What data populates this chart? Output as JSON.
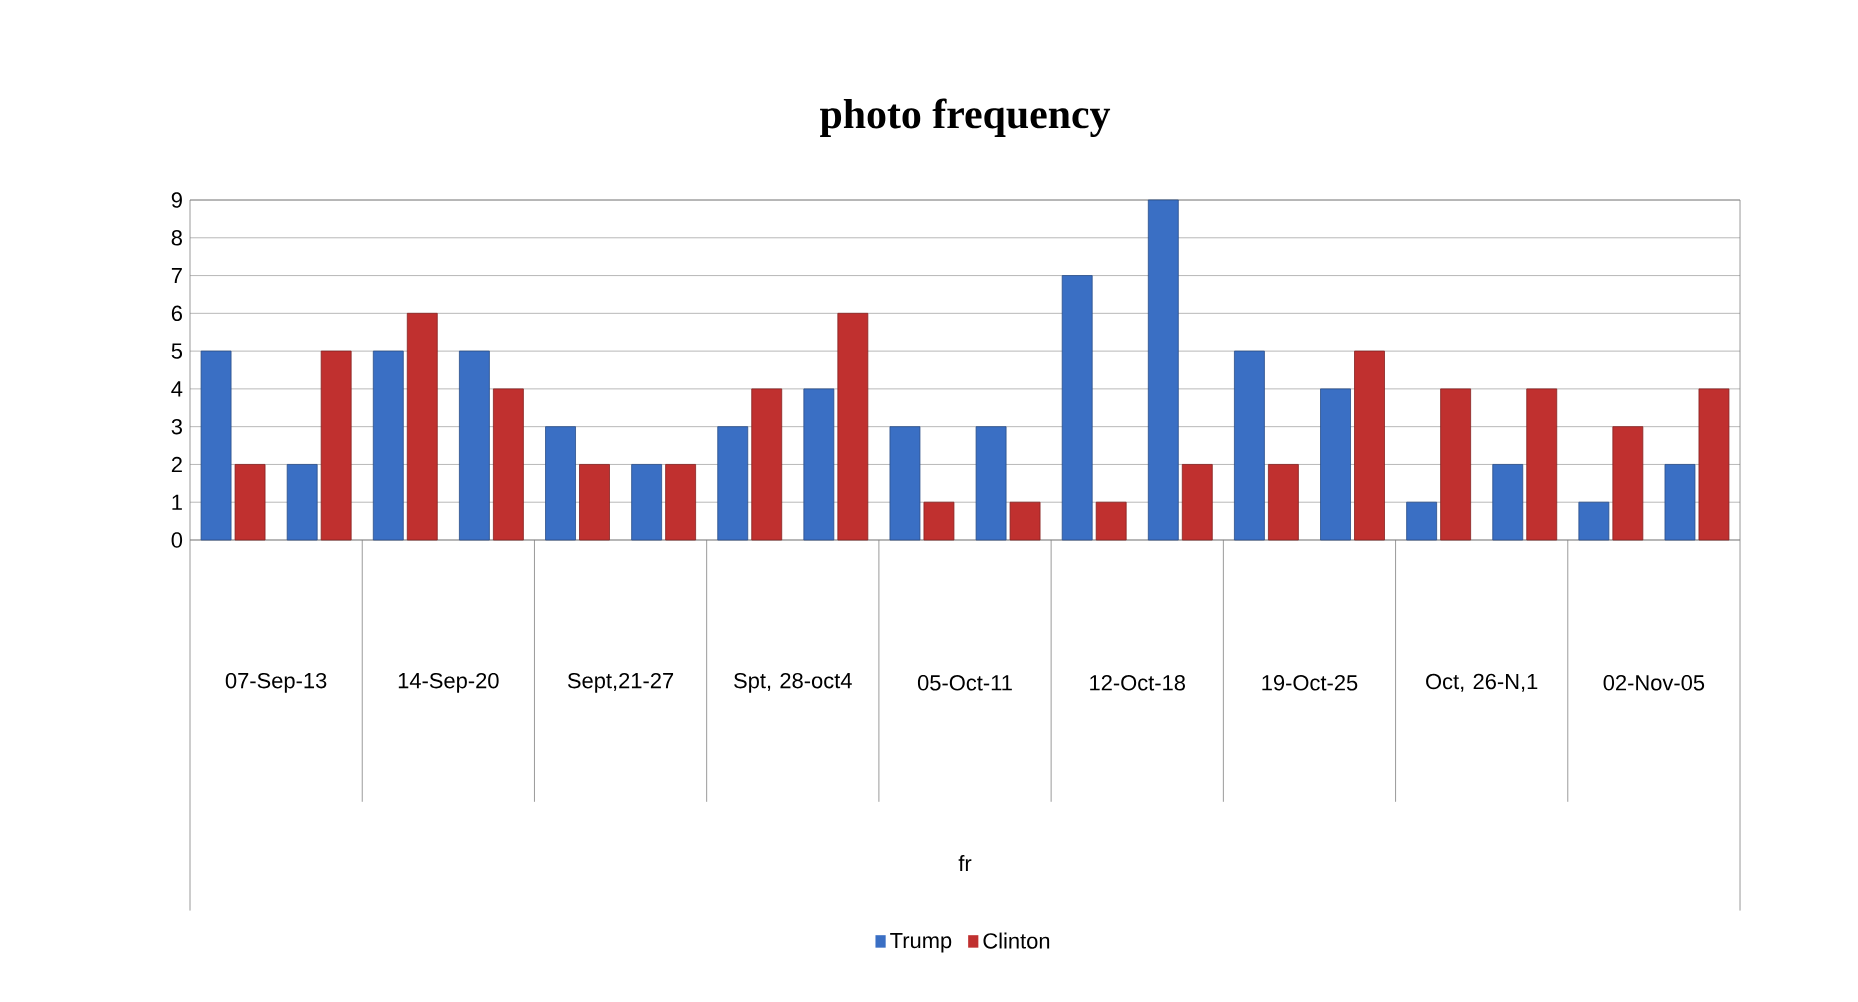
{
  "chart_data": {
    "type": "bar",
    "title": "photo frequency",
    "categories": [
      null,
      null,
      null,
      null,
      null,
      null,
      null,
      null,
      null,
      null,
      null,
      null,
      null,
      null,
      null,
      null,
      null,
      null
    ],
    "series": [
      {
        "name": "Trump",
        "color": "#3a6fc4",
        "values": [
          5,
          2,
          5,
          5,
          3,
          2,
          3,
          4,
          3,
          3,
          7,
          9,
          5,
          4,
          1,
          2,
          1,
          2
        ]
      },
      {
        "name": "Clinton",
        "color": "#c0302f",
        "values": [
          2,
          5,
          6,
          4,
          2,
          2,
          4,
          6,
          1,
          1,
          1,
          2,
          2,
          5,
          4,
          4,
          3,
          4
        ]
      }
    ],
    "annotations": [
      "07-Sep-13",
      "14-Sep-20",
      "Sept,21-27",
      "Spt, 28-oct4",
      "05-Oct-11",
      "12-Oct-18",
      "19-Oct-25",
      "Oct, 26-N,1",
      "02-Nov-05",
      "fr"
    ],
    "ylim": [
      0,
      9
    ],
    "yticks": [
      0,
      1,
      2,
      3,
      4,
      5,
      6,
      7,
      8,
      9
    ],
    "grid": "y",
    "legend": "bottom"
  }
}
